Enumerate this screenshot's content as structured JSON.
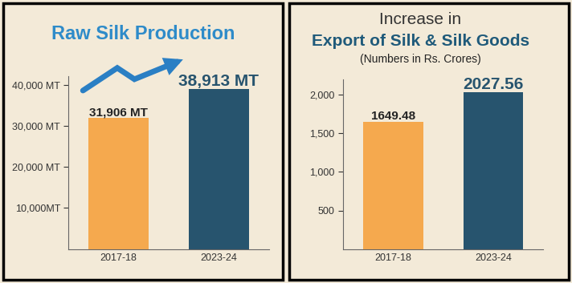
{
  "chart_data": [
    {
      "type": "bar",
      "title": "Raw Silk Production",
      "categories": [
        "2017-18",
        "2023-24"
      ],
      "values": [
        31906,
        38913
      ],
      "value_labels": [
        "31,906 MT",
        "38,913 MT"
      ],
      "data_labels": true,
      "colors": [
        "#f5a94e",
        "#27546e"
      ],
      "ylim": [
        0,
        42000
      ],
      "yticks": [
        {
          "value": 10000,
          "label": "10,000MT"
        },
        {
          "value": 20000,
          "label": "20,000 MT"
        },
        {
          "value": 30000,
          "label": "30,000 MT"
        },
        {
          "value": 40000,
          "label": "40,000 MT"
        }
      ],
      "grid": false
    },
    {
      "type": "bar",
      "title": "Increase in\nExport of Silk & Silk Goods",
      "subtitle": "(Numbers in Rs. Crores)",
      "categories": [
        "2017-18",
        "2023-24"
      ],
      "values": [
        1649.48,
        2027.56
      ],
      "data_labels": true,
      "colors": [
        "#f5a94e",
        "#27546e"
      ],
      "ylim": [
        0,
        2200
      ],
      "yticks": [
        500,
        {
          "value": 1000,
          "label": "1,000"
        },
        {
          "value": 1500,
          "label": "1,500"
        },
        {
          "value": 2000,
          "label": "2,000"
        }
      ],
      "grid": false
    }
  ]
}
